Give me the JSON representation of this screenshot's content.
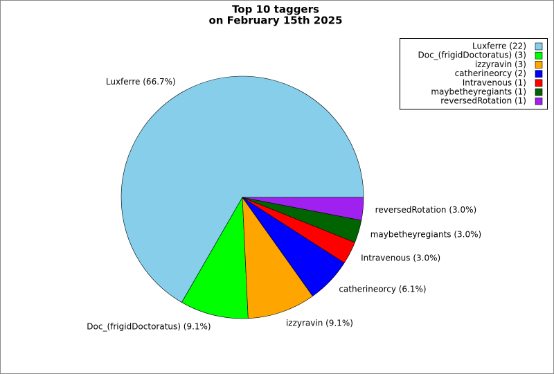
{
  "chart_data": {
    "type": "pie",
    "title_lines": [
      "Top 10 taggers",
      "on February 15th 2025"
    ],
    "categories": [
      "Luxferre",
      "Doc_(frigidDoctoratus)",
      "izzyravin",
      "catherineorcy",
      "Intravenous",
      "maybetheyregiants",
      "reversedRotation"
    ],
    "values": [
      22,
      3,
      3,
      2,
      1,
      1,
      1
    ],
    "value_labels": [
      "Luxferre (66.7%)",
      "Doc_(frigidDoctoratus) (9.1%)",
      "izzyravin (9.1%)",
      "catherineorcy (6.1%)",
      "Intravenous (3.0%)",
      "maybetheyregiants (3.0%)",
      "reversedRotation (3.0%)"
    ],
    "legend_labels": [
      "Luxferre (22)",
      "Doc_(frigidDoctoratus) (3)",
      "izzyravin (3)",
      "catherineorcy (2)",
      "Intravenous (1)",
      "maybetheyregiants (1)",
      "reversedRotation (1)"
    ],
    "colors": [
      "#87ceeb",
      "#00ff00",
      "#ffa500",
      "#0000ff",
      "#ff0000",
      "#006400",
      "#a020f0"
    ],
    "legend": "upper right"
  }
}
